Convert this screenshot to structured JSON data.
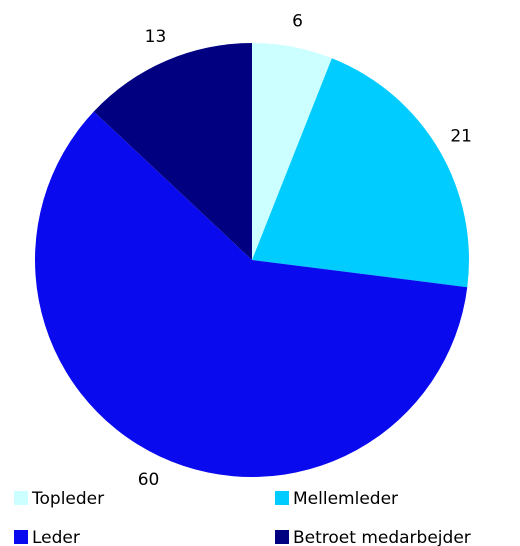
{
  "chart_data": {
    "type": "pie",
    "categories": [
      "Topleder",
      "Mellemleder",
      "Leder",
      "Betroet medarbejder"
    ],
    "values": [
      6,
      21,
      60,
      13
    ],
    "colors": [
      "#ccffff",
      "#00ccff",
      "#0a0aee",
      "#000080"
    ],
    "legend": "bottom"
  }
}
